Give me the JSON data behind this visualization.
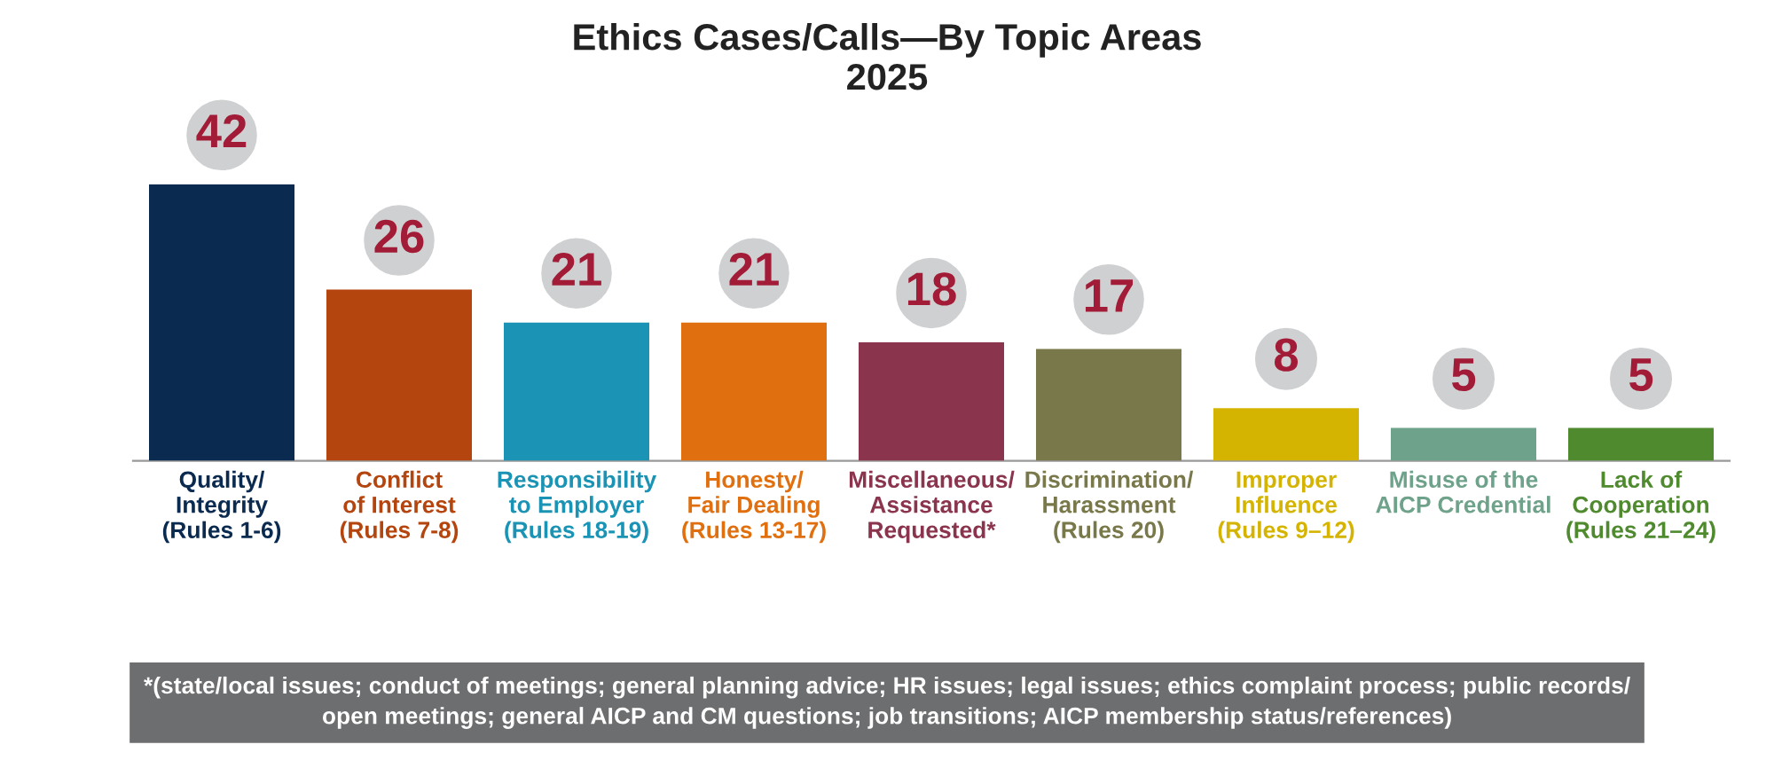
{
  "chart_data": {
    "type": "bar",
    "title": "Ethics Cases/Calls—By Topic Areas\n2025",
    "categories": [
      "Quality/\nIntegrity\n(Rules 1-6)",
      "Conflict\nof Interest\n(Rules 7-8)",
      "Responsibility\nto Employer\n(Rules 18-19)",
      "Honesty/\nFair Dealing\n(Rules 13-17)",
      "Miscellaneous/\nAssistance\nRequested*",
      "Discrimination/\nHarassment\n(Rules 20)",
      "Improper\nInfluence\n(Rules 9–12)",
      "Misuse of the\nAICP Credential",
      "Lack of\nCooperation\n(Rules 21–24)"
    ],
    "values": [
      42,
      26,
      21,
      21,
      18,
      17,
      8,
      5,
      5
    ],
    "colors": [
      "#0b2a4f",
      "#b5450f",
      "#1a93b4",
      "#e06f0f",
      "#8b344d",
      "#78784a",
      "#d4b400",
      "#6fa28a",
      "#4f8a2e"
    ],
    "data_labels": true,
    "annotations": [
      "*(state/local issues; conduct of meetings; general planning advice; HR issues; legal issues; ethics complaint process; public records/\nopen meetings; general AICP and CM questions; job transitions; AICP membership status/references)"
    ]
  }
}
